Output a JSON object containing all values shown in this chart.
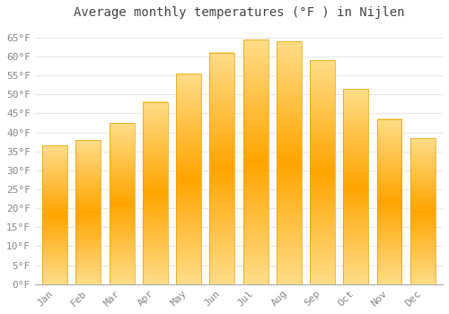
{
  "title": "Average monthly temperatures (°F ) in Nijlen",
  "months": [
    "Jan",
    "Feb",
    "Mar",
    "Apr",
    "May",
    "Jun",
    "Jul",
    "Aug",
    "Sep",
    "Oct",
    "Nov",
    "Dec"
  ],
  "values": [
    36.5,
    38.0,
    42.5,
    48.0,
    55.5,
    61.0,
    64.5,
    64.0,
    59.0,
    51.5,
    43.5,
    38.5
  ],
  "bar_color_top": "#FFCC55",
  "bar_color_mid": "#FFB020",
  "bar_color_bottom": "#FFCC55",
  "background_color": "#FFFFFF",
  "grid_color": "#E8E8E8",
  "yticks": [
    0,
    5,
    10,
    15,
    20,
    25,
    30,
    35,
    40,
    45,
    50,
    55,
    60,
    65
  ],
  "ylim": [
    0,
    68
  ],
  "title_fontsize": 10,
  "tick_fontsize": 8,
  "title_color": "#444444",
  "tick_color": "#888888",
  "font_family": "monospace"
}
